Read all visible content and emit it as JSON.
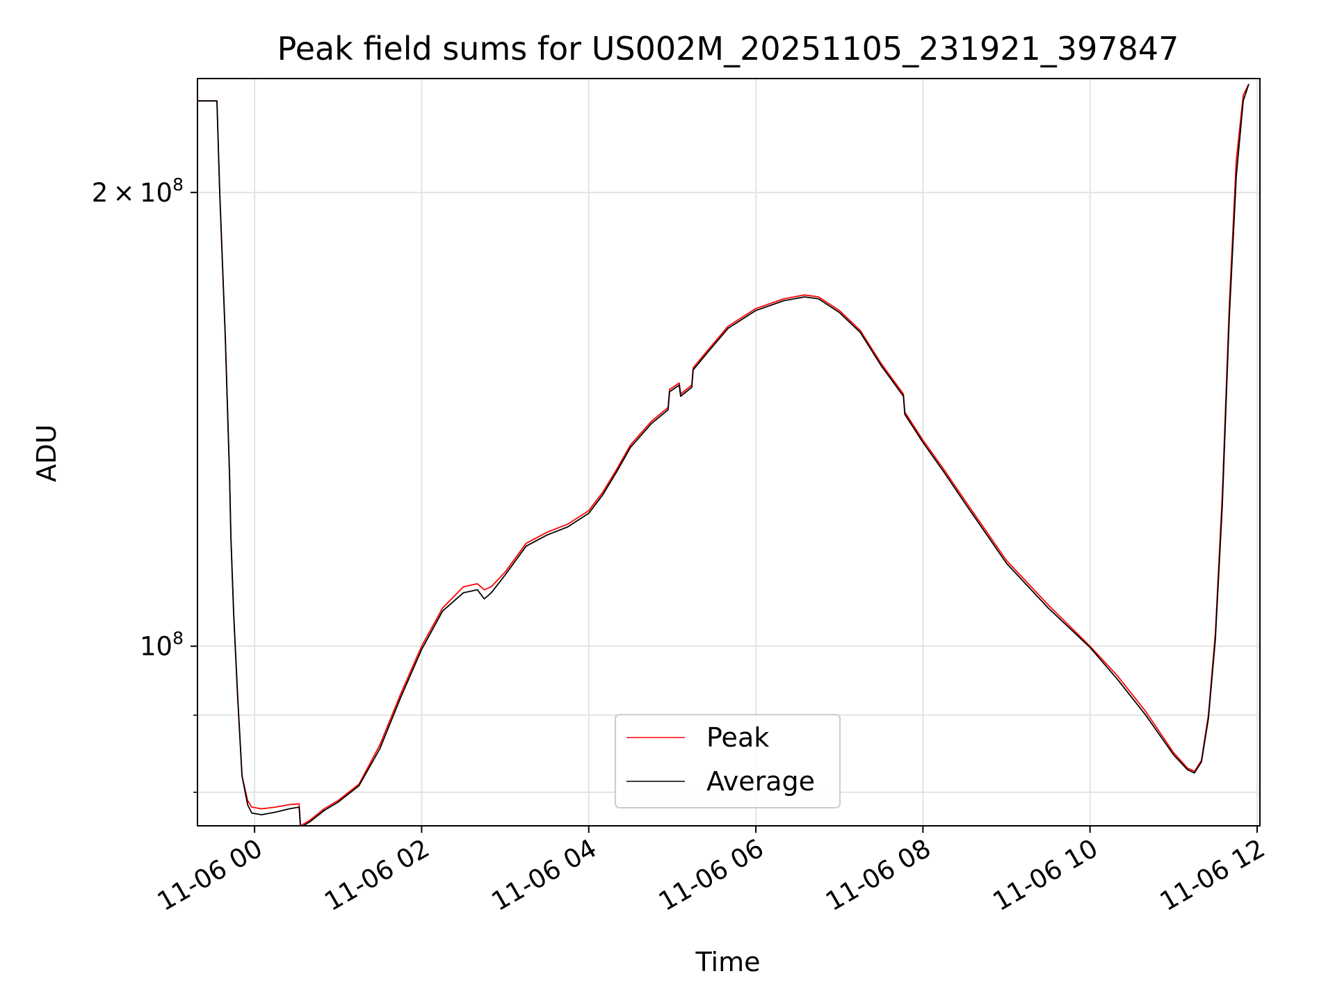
{
  "chart_data": {
    "type": "line",
    "title": "Peak field sums for US002M_20251105_231921_397847",
    "xlabel": "Time",
    "ylabel": "ADU",
    "yscale": "log",
    "ylim": [
      76000000,
      238000000
    ],
    "xlim": [
      "2025-11-05 23:19",
      "2025-11-06 12:02"
    ],
    "grid": true,
    "legend_position": "lower center",
    "x_ticks": [
      {
        "x": "2025-11-06 00:00",
        "label": "11-06 00"
      },
      {
        "x": "2025-11-06 02:00",
        "label": "11-06 02"
      },
      {
        "x": "2025-11-06 04:00",
        "label": "11-06 04"
      },
      {
        "x": "2025-11-06 06:00",
        "label": "11-06 06"
      },
      {
        "x": "2025-11-06 08:00",
        "label": "11-06 08"
      },
      {
        "x": "2025-11-06 10:00",
        "label": "11-06 10"
      },
      {
        "x": "2025-11-06 12:00",
        "label": "11-06 12"
      }
    ],
    "y_major_ticks": [
      {
        "y": 100000000,
        "base": "10",
        "exp": "8",
        "mantissa": ""
      },
      {
        "y": 200000000,
        "base": "10",
        "exp": "8",
        "mantissa": "2 × "
      }
    ],
    "y_minor_ticks": [
      80000000,
      90000000
    ],
    "series": [
      {
        "name": "Peak",
        "color": "#ff0000",
        "x": [
          "2025-11-05 23:19",
          "2025-11-05 23:33",
          "2025-11-05 23:35",
          "2025-11-05 23:39",
          "2025-11-05 23:42",
          "2025-11-05 23:43",
          "2025-11-05 23:45",
          "2025-11-05 23:48",
          "2025-11-05 23:51",
          "2025-11-05 23:55",
          "2025-11-05 23:58",
          "2025-11-06 00:05",
          "2025-11-06 00:15",
          "2025-11-06 00:25",
          "2025-11-06 00:32",
          "2025-11-06 00:33",
          "2025-11-06 00:40",
          "2025-11-06 00:50",
          "2025-11-06 01:00",
          "2025-11-06 01:15",
          "2025-11-06 01:30",
          "2025-11-06 01:45",
          "2025-11-06 02:00",
          "2025-11-06 02:15",
          "2025-11-06 02:30",
          "2025-11-06 02:40",
          "2025-11-06 02:45",
          "2025-11-06 02:50",
          "2025-11-06 03:00",
          "2025-11-06 03:15",
          "2025-11-06 03:30",
          "2025-11-06 03:45",
          "2025-11-06 04:00",
          "2025-11-06 04:10",
          "2025-11-06 04:20",
          "2025-11-06 04:30",
          "2025-11-06 04:45",
          "2025-11-06 04:57",
          "2025-11-06 04:58",
          "2025-11-06 05:05",
          "2025-11-06 05:06",
          "2025-11-06 05:14",
          "2025-11-06 05:15",
          "2025-11-06 05:25",
          "2025-11-06 05:40",
          "2025-11-06 06:00",
          "2025-11-06 06:20",
          "2025-11-06 06:35",
          "2025-11-06 06:45",
          "2025-11-06 07:00",
          "2025-11-06 07:15",
          "2025-11-06 07:30",
          "2025-11-06 07:46",
          "2025-11-06 07:47",
          "2025-11-06 08:00",
          "2025-11-06 08:15",
          "2025-11-06 08:30",
          "2025-11-06 09:00",
          "2025-11-06 09:30",
          "2025-11-06 10:00",
          "2025-11-06 10:20",
          "2025-11-06 10:40",
          "2025-11-06 11:00",
          "2025-11-06 11:10",
          "2025-11-06 11:15",
          "2025-11-06 11:20",
          "2025-11-06 11:25",
          "2025-11-06 11:30",
          "2025-11-06 11:35",
          "2025-11-06 11:40",
          "2025-11-06 11:45",
          "2025-11-06 11:50",
          "2025-11-06 11:54"
        ],
        "y": [
          230000000,
          230000000,
          200000000,
          160000000,
          130000000,
          118000000,
          105000000,
          92000000,
          82000000,
          79000000,
          78200000,
          78000000,
          78200000,
          78500000,
          78600000,
          76000000,
          76700000,
          78000000,
          79000000,
          81000000,
          86000000,
          93000000,
          100000000,
          106000000,
          109500000,
          110000000,
          109000000,
          109500000,
          112000000,
          117000000,
          119000000,
          120500000,
          123000000,
          126500000,
          131000000,
          136000000,
          141000000,
          144000000,
          148000000,
          149500000,
          147000000,
          149000000,
          153000000,
          157000000,
          163000000,
          167500000,
          170000000,
          171000000,
          170500000,
          167000000,
          162000000,
          154000000,
          147000000,
          143000000,
          137000000,
          131000000,
          125000000,
          114000000,
          106500000,
          100000000,
          95500000,
          90500000,
          85000000,
          83000000,
          82600000,
          84000000,
          90000000,
          102000000,
          126000000,
          168000000,
          210000000,
          232000000,
          236000000
        ]
      },
      {
        "name": "Average",
        "color": "#000000",
        "x": [
          "2025-11-05 23:19",
          "2025-11-05 23:33",
          "2025-11-05 23:35",
          "2025-11-05 23:39",
          "2025-11-05 23:42",
          "2025-11-05 23:43",
          "2025-11-05 23:45",
          "2025-11-05 23:48",
          "2025-11-05 23:51",
          "2025-11-05 23:55",
          "2025-11-05 23:58",
          "2025-11-06 00:05",
          "2025-11-06 00:15",
          "2025-11-06 00:25",
          "2025-11-06 00:32",
          "2025-11-06 00:33",
          "2025-11-06 00:40",
          "2025-11-06 00:50",
          "2025-11-06 01:00",
          "2025-11-06 01:15",
          "2025-11-06 01:30",
          "2025-11-06 01:45",
          "2025-11-06 02:00",
          "2025-11-06 02:15",
          "2025-11-06 02:30",
          "2025-11-06 02:40",
          "2025-11-06 02:45",
          "2025-11-06 02:50",
          "2025-11-06 03:00",
          "2025-11-06 03:15",
          "2025-11-06 03:30",
          "2025-11-06 03:45",
          "2025-11-06 04:00",
          "2025-11-06 04:10",
          "2025-11-06 04:20",
          "2025-11-06 04:30",
          "2025-11-06 04:45",
          "2025-11-06 04:57",
          "2025-11-06 04:58",
          "2025-11-06 05:05",
          "2025-11-06 05:06",
          "2025-11-06 05:14",
          "2025-11-06 05:15",
          "2025-11-06 05:25",
          "2025-11-06 05:40",
          "2025-11-06 06:00",
          "2025-11-06 06:20",
          "2025-11-06 06:35",
          "2025-11-06 06:45",
          "2025-11-06 07:00",
          "2025-11-06 07:15",
          "2025-11-06 07:30",
          "2025-11-06 07:46",
          "2025-11-06 07:47",
          "2025-11-06 08:00",
          "2025-11-06 08:15",
          "2025-11-06 08:30",
          "2025-11-06 09:00",
          "2025-11-06 09:30",
          "2025-11-06 10:00",
          "2025-11-06 10:20",
          "2025-11-06 10:40",
          "2025-11-06 11:00",
          "2025-11-06 11:10",
          "2025-11-06 11:15",
          "2025-11-06 11:20",
          "2025-11-06 11:25",
          "2025-11-06 11:30",
          "2025-11-06 11:35",
          "2025-11-06 11:40",
          "2025-11-06 11:45",
          "2025-11-06 11:50",
          "2025-11-06 11:54"
        ],
        "y": [
          230000000,
          230000000,
          200000000,
          160000000,
          130000000,
          118000000,
          105000000,
          92000000,
          82000000,
          78500000,
          77500000,
          77300000,
          77600000,
          78000000,
          78200000,
          75800000,
          76500000,
          77800000,
          78800000,
          80800000,
          85500000,
          92500000,
          99500000,
          105500000,
          108500000,
          109000000,
          107500000,
          108500000,
          111500000,
          116500000,
          118500000,
          120000000,
          122500000,
          126000000,
          130500000,
          135500000,
          140500000,
          143500000,
          147500000,
          149000000,
          146500000,
          148500000,
          152500000,
          156500000,
          162500000,
          167000000,
          169500000,
          170500000,
          170000000,
          166500000,
          161500000,
          153500000,
          146500000,
          142500000,
          136500000,
          130500000,
          124500000,
          113500000,
          106000000,
          99800000,
          95000000,
          90000000,
          84700000,
          82800000,
          82400000,
          83800000,
          89500000,
          101000000,
          124000000,
          165000000,
          205000000,
          230000000,
          236000000
        ]
      }
    ]
  }
}
